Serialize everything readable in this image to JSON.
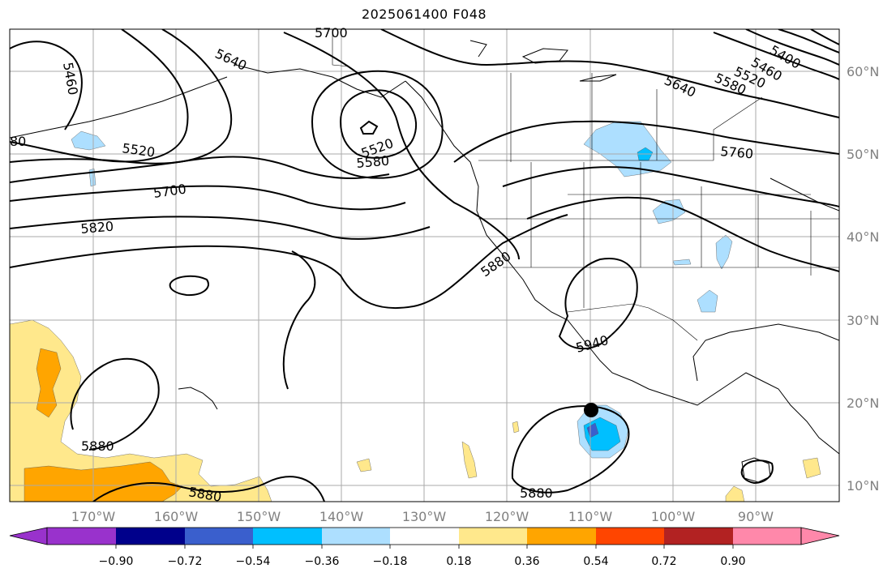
{
  "title": "2025061400 F048",
  "lat_labels": [
    "60°N",
    "50°N",
    "40°N",
    "30°N",
    "20°N",
    "10°N"
  ],
  "lon_labels": [
    "170°W",
    "160°W",
    "150°W",
    "140°W",
    "130°W",
    "120°W",
    "110°W",
    "100°W",
    "90°W"
  ],
  "contour_labels": [
    "5700",
    "5460",
    "5640",
    "5400",
    "5460",
    "5520",
    "5580",
    "5640",
    "80",
    "5520",
    "5520",
    "5580",
    "5700",
    "5760",
    "5820",
    "5880",
    "5940",
    "5880",
    "5880",
    "5880"
  ],
  "colorbar": {
    "ticks": [
      "−0.90",
      "−0.72",
      "−0.54",
      "−0.36",
      "−0.18",
      "0.18",
      "0.36",
      "0.54",
      "0.72",
      "0.90"
    ],
    "colors": {
      "under": "#9932CC",
      "bins": [
        "#00008B",
        "#3A5FCD",
        "#00BFFF",
        "#ADDFFF",
        "#FFFFFF",
        "#FFE88C",
        "#FFA500",
        "#FF4500",
        "#B22222"
      ],
      "over": "#FF88AA"
    }
  },
  "colors": {
    "grid": "#AAAAAA",
    "contour": "#000000",
    "coast": "#000000",
    "positive_light": "#FFE88C",
    "positive_mid": "#FFA500",
    "negative_light": "#ADDFFF",
    "negative_mid": "#00BFFF",
    "negative_dark": "#3A5FCD",
    "marker": "#000000"
  }
}
